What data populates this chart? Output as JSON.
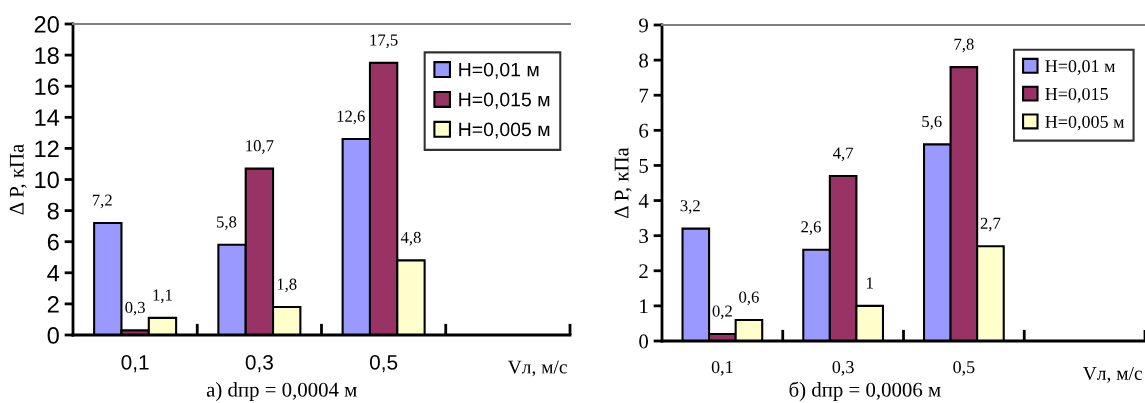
{
  "chart_data": [
    {
      "type": "bar",
      "categories": [
        "0,1",
        "0,3",
        "0,5",
        null
      ],
      "xlabel": "Vл, м/с",
      "ylabel": "Δ P, кПа",
      "ylim": [
        0,
        20
      ],
      "yticks": [
        0,
        2,
        4,
        6,
        8,
        10,
        12,
        14,
        16,
        18,
        20
      ],
      "legend": "top right",
      "grid": false,
      "annotations": [
        "а) dпр = 0,0004 м"
      ],
      "series": [
        {
          "name": "Н=0,01 м",
          "color": "#9999ff",
          "values": [
            7.2,
            5.8,
            12.6,
            null
          ],
          "value_labels": [
            "7,2",
            "5,8",
            "12,6",
            null
          ]
        },
        {
          "name": "Н=0,015 м",
          "color": "#993366",
          "values": [
            0.3,
            10.7,
            17.5,
            null
          ],
          "value_labels": [
            "0,3",
            "10,7",
            "17,5",
            null
          ]
        },
        {
          "name": "Н=0,005 м",
          "color": "#ffffcc",
          "values": [
            1.1,
            1.8,
            4.8,
            null
          ],
          "value_labels": [
            "1,1",
            "1,8",
            "4,8",
            null
          ]
        }
      ]
    },
    {
      "type": "bar",
      "categories": [
        "0,1",
        "0,3",
        "0,5",
        null
      ],
      "xlabel": "Vл, м/с",
      "ylabel": "Δ P, кПа",
      "ylim": [
        0,
        9
      ],
      "yticks": [
        0,
        1,
        2,
        3,
        4,
        5,
        6,
        7,
        8,
        9
      ],
      "legend": "top right",
      "grid": false,
      "annotations": [
        "б) dпр = 0,0006 м"
      ],
      "series": [
        {
          "name": "Н=0,01 м",
          "color": "#9999ff",
          "values": [
            3.2,
            2.6,
            5.6,
            null
          ],
          "value_labels": [
            "3,2",
            "2,6",
            "5,6",
            null
          ]
        },
        {
          "name": "Н=0,015",
          "color": "#993366",
          "values": [
            0.2,
            4.7,
            7.8,
            null
          ],
          "value_labels": [
            "0,2",
            "4,7",
            "7,8",
            null
          ]
        },
        {
          "name": "Н=0,005 м",
          "color": "#ffffcc",
          "values": [
            0.6,
            1,
            2.7,
            null
          ],
          "value_labels": [
            "0,6",
            "1",
            "2,7",
            null
          ]
        }
      ]
    }
  ]
}
